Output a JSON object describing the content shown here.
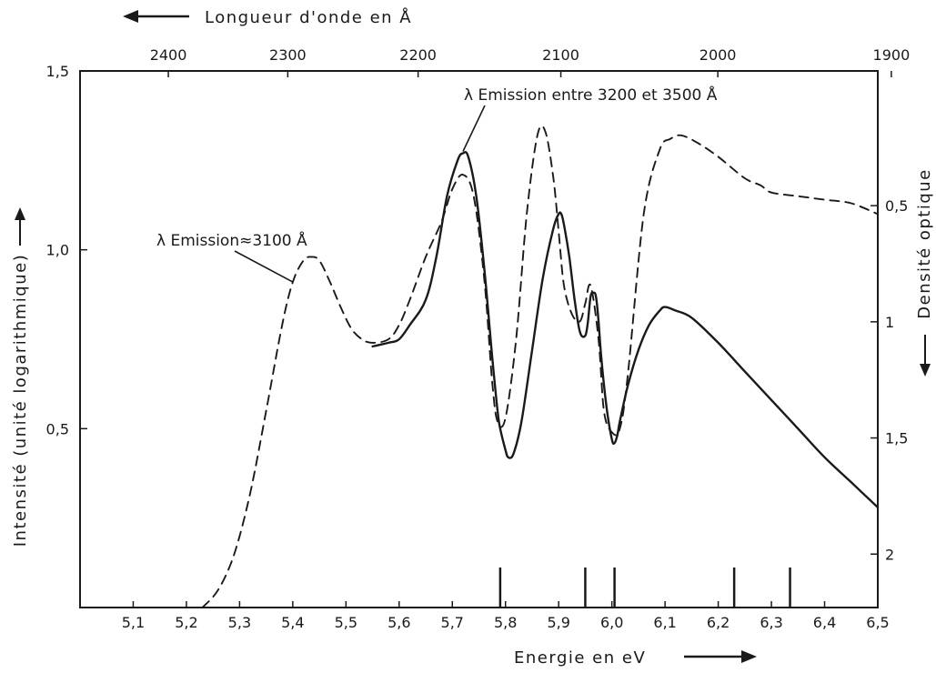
{
  "chart_data": {
    "type": "line",
    "title": "",
    "xlabel": "Energie en eV",
    "x2label": "Longueur d'onde en Å",
    "ylabel": "Intensité (unité logarithmique)",
    "y2label": "Densité optique",
    "xlim": [
      5.0,
      6.5
    ],
    "ylim": [
      0.0,
      1.5
    ],
    "y2lim": [
      2.23,
      -0.08
    ],
    "grid": false,
    "x_ticks": [
      5.1,
      5.2,
      5.3,
      5.4,
      5.5,
      5.6,
      5.7,
      5.8,
      5.9,
      6.0,
      6.1,
      6.2,
      6.3,
      6.4,
      6.5
    ],
    "x_tick_labels": [
      "5,1",
      "5,2",
      "5,3",
      "5,4",
      "5,5",
      "5,6",
      "5,7",
      "5,8",
      "5,9",
      "6,0",
      "6,1",
      "6,2",
      "6,3",
      "6,4",
      "6,5"
    ],
    "x2_ticks": [
      2400,
      2300,
      2200,
      2100,
      2000,
      1900
    ],
    "x2_tick_labels": [
      "2400",
      "2300",
      "2200",
      "2100",
      "2000",
      "1900"
    ],
    "y_ticks": [
      0.5,
      1.0,
      1.5
    ],
    "y_tick_labels": [
      "0,5",
      "1,0",
      "1,5"
    ],
    "y2_ticks": [
      0.5,
      1,
      1.5,
      2
    ],
    "y2_tick_labels": [
      "0,5",
      "1",
      "1,5",
      "2"
    ],
    "energy_markers": [
      5.79,
      5.95,
      6.005,
      6.23,
      6.335
    ],
    "series": [
      {
        "style": "solid",
        "x": [
          5.55,
          5.58,
          5.6,
          5.62,
          5.65,
          5.67,
          5.69,
          5.71,
          5.72,
          5.73,
          5.745,
          5.76,
          5.775,
          5.785,
          5.79,
          5.8,
          5.805,
          5.815,
          5.83,
          5.85,
          5.87,
          5.89,
          5.9,
          5.905,
          5.91,
          5.92,
          5.93,
          5.94,
          5.95,
          5.955,
          5.96,
          5.965,
          5.97,
          5.975,
          5.98,
          5.99,
          6.0,
          6.005,
          6.01,
          6.015,
          6.03,
          6.05,
          6.07,
          6.09,
          6.1,
          6.12,
          6.15,
          6.2,
          6.25,
          6.3,
          6.35,
          6.4,
          6.45,
          6.5
        ],
        "y": [
          0.73,
          0.74,
          0.75,
          0.79,
          0.86,
          0.98,
          1.15,
          1.25,
          1.27,
          1.26,
          1.15,
          0.95,
          0.7,
          0.55,
          0.5,
          0.44,
          0.42,
          0.43,
          0.52,
          0.72,
          0.92,
          1.06,
          1.1,
          1.1,
          1.07,
          0.98,
          0.86,
          0.77,
          0.76,
          0.8,
          0.87,
          0.88,
          0.87,
          0.8,
          0.7,
          0.56,
          0.47,
          0.46,
          0.48,
          0.52,
          0.62,
          0.72,
          0.79,
          0.83,
          0.84,
          0.83,
          0.81,
          0.74,
          0.66,
          0.58,
          0.5,
          0.42,
          0.35,
          0.28
        ]
      },
      {
        "style": "dashed",
        "x": [
          5.23,
          5.26,
          5.29,
          5.32,
          5.35,
          5.38,
          5.4,
          5.42,
          5.435,
          5.45,
          5.47,
          5.49,
          5.51,
          5.53,
          5.55,
          5.58,
          5.6,
          5.62,
          5.65,
          5.68,
          5.7,
          5.72,
          5.74,
          5.76,
          5.775,
          5.785,
          5.8,
          5.82,
          5.84,
          5.86,
          5.875,
          5.89,
          5.9,
          5.91,
          5.925,
          5.94,
          5.95,
          5.96,
          5.975,
          5.985,
          6.0,
          6.015,
          6.03,
          6.06,
          6.09,
          6.11,
          6.13,
          6.16,
          6.2,
          6.25,
          6.28,
          6.3,
          6.35,
          6.4,
          6.45,
          6.5
        ],
        "y": [
          0.0,
          0.05,
          0.15,
          0.32,
          0.55,
          0.79,
          0.91,
          0.97,
          0.98,
          0.97,
          0.91,
          0.84,
          0.78,
          0.75,
          0.74,
          0.75,
          0.79,
          0.86,
          0.98,
          1.08,
          1.17,
          1.21,
          1.15,
          0.92,
          0.63,
          0.52,
          0.53,
          0.75,
          1.1,
          1.32,
          1.33,
          1.2,
          1.05,
          0.9,
          0.82,
          0.8,
          0.85,
          0.9,
          0.75,
          0.55,
          0.49,
          0.5,
          0.65,
          1.1,
          1.28,
          1.31,
          1.32,
          1.3,
          1.26,
          1.2,
          1.18,
          1.16,
          1.15,
          1.14,
          1.13,
          1.1
        ]
      }
    ],
    "annotations": [
      {
        "text": "λ  Emission entre 3200 et 3500  Å",
        "points_to_x": 5.72,
        "points_to_y": 1.27
      },
      {
        "text": "λ  Emission≈3100 Å",
        "points_to_x": 5.4,
        "points_to_y": 0.91
      }
    ]
  }
}
